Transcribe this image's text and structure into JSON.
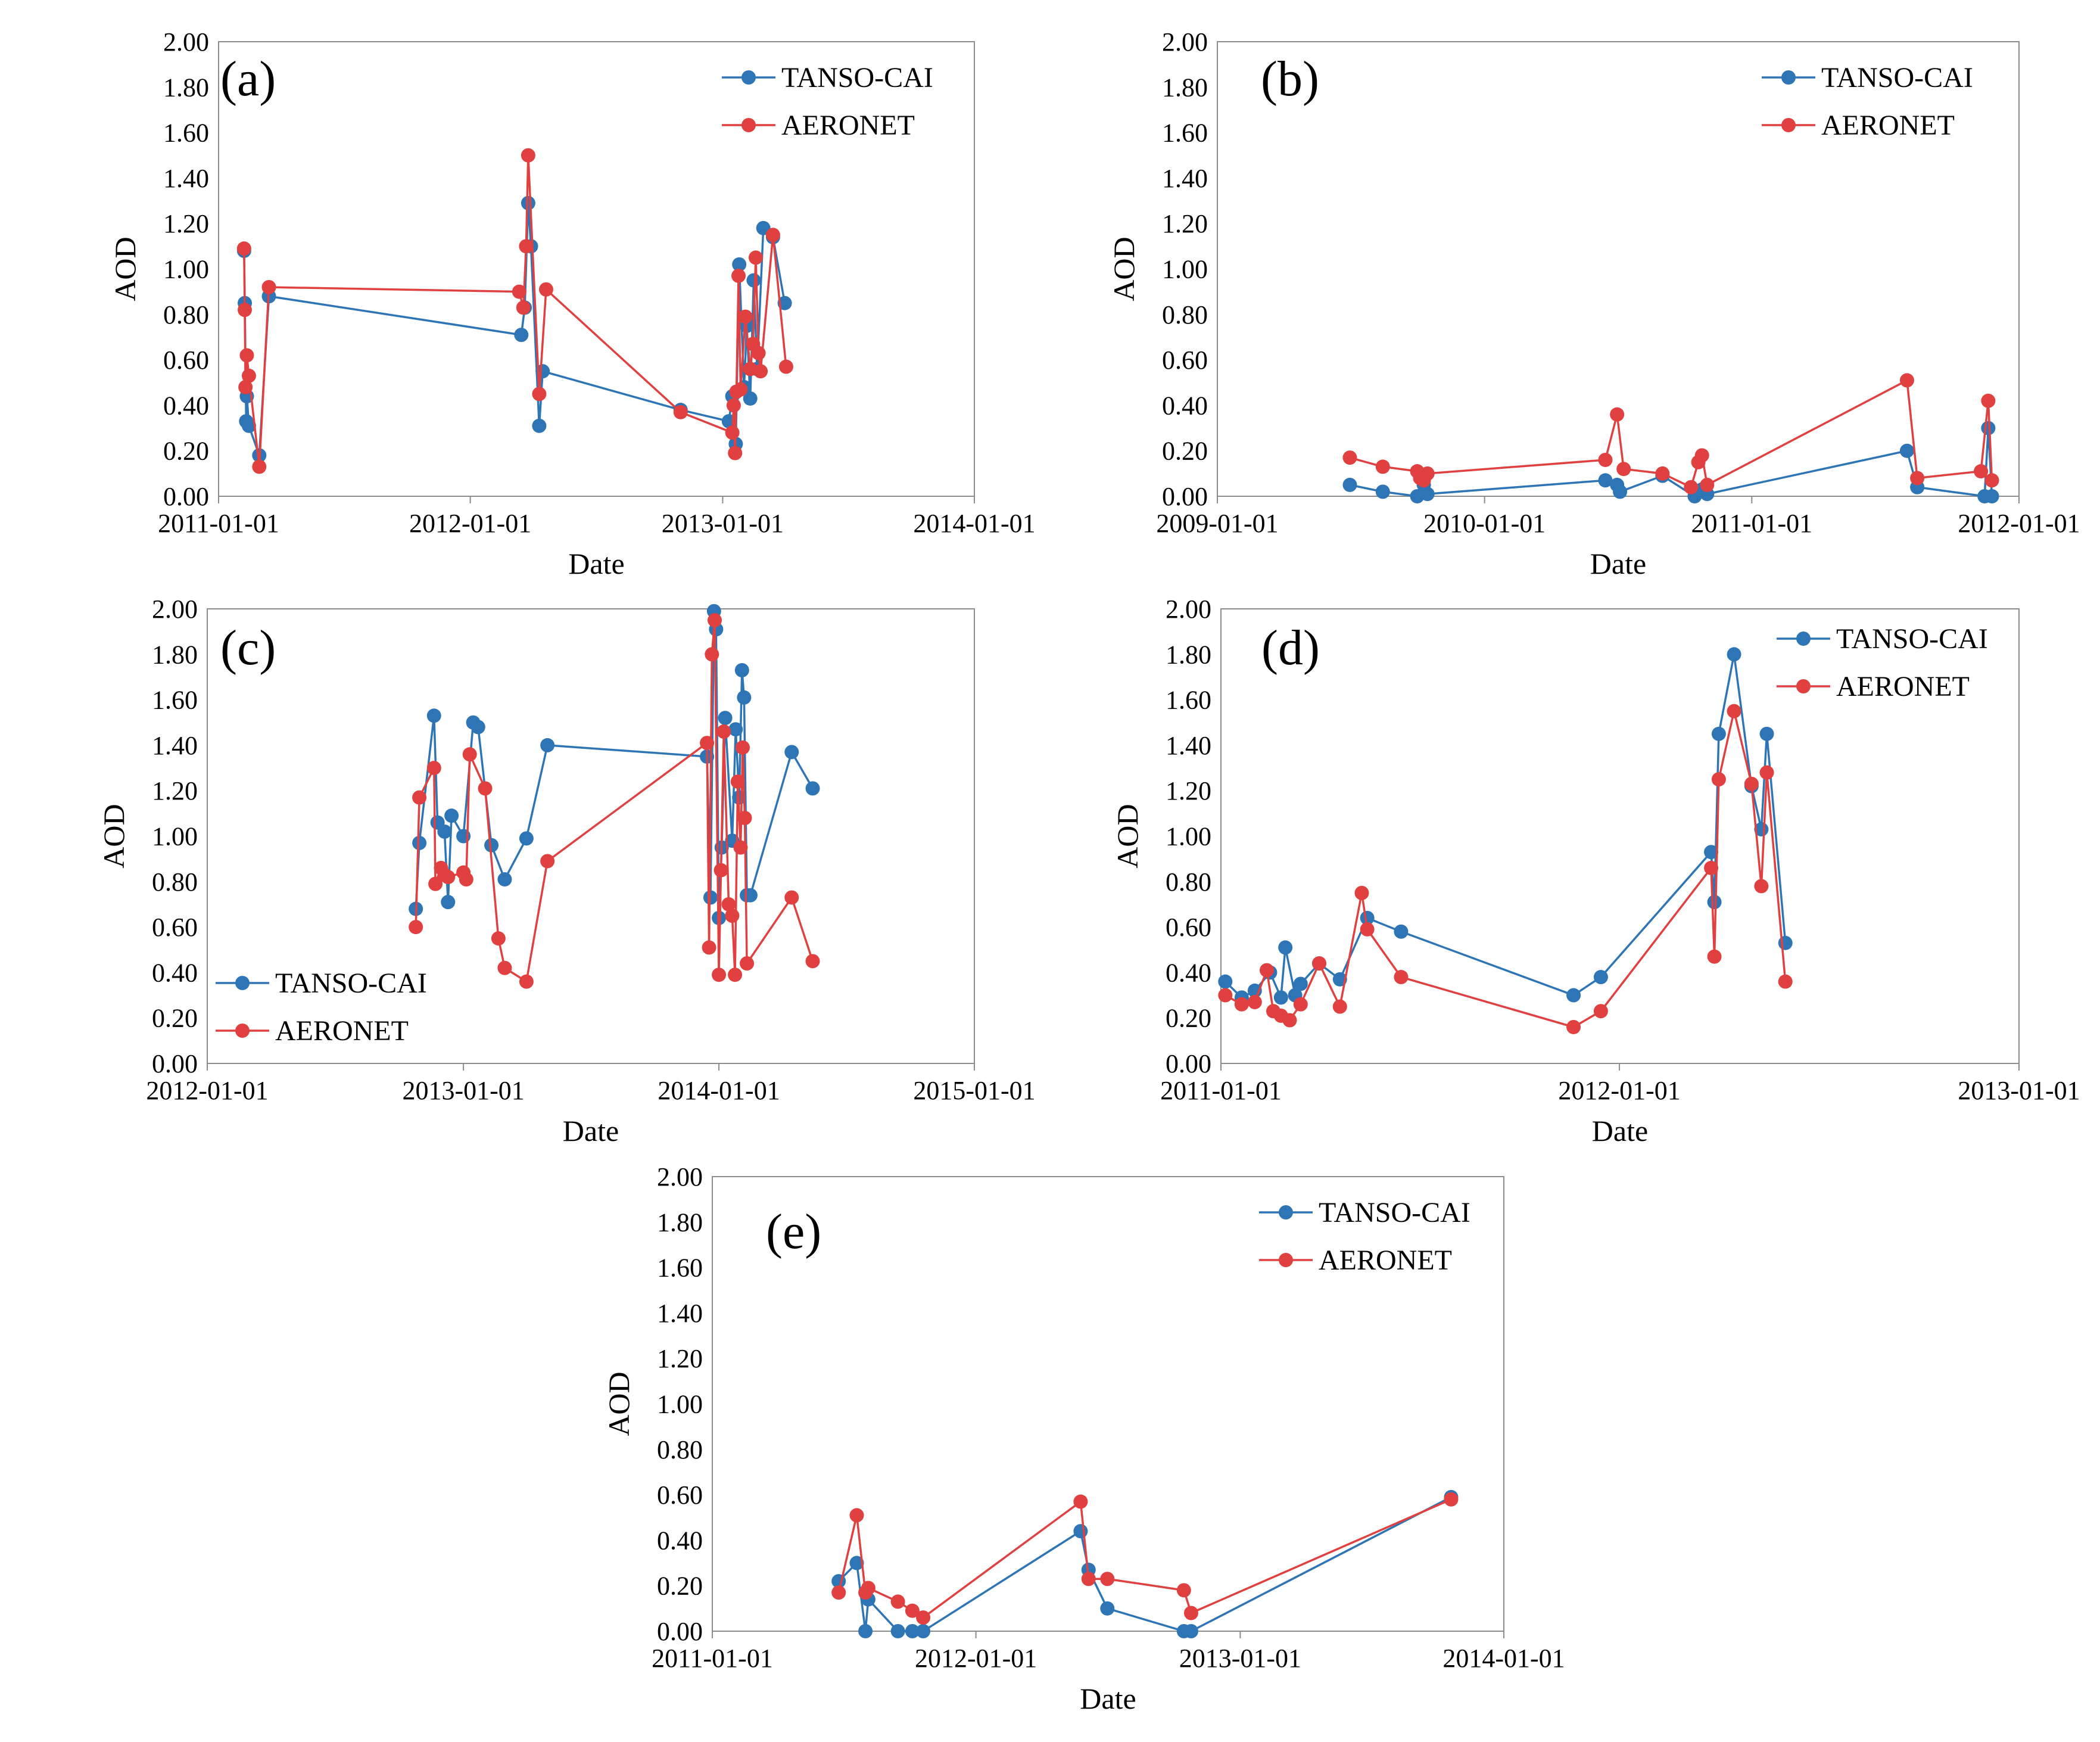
{
  "series_colors": {
    "TANSO-CAI": "#2E75B6",
    "AERONET": "#E04040"
  },
  "chart_data": [
    {
      "type": "line",
      "panel_label": "(a)",
      "xlabel": "Date",
      "ylabel": "AOD",
      "xlim": [
        "2011-01-01",
        "2014-01-01"
      ],
      "xticks": [
        "2011-01-01",
        "2012-01-01",
        "2013-01-01",
        "2014-01-01"
      ],
      "ylim": [
        0,
        2
      ],
      "yticks": [
        "0.00",
        "0.20",
        "0.40",
        "0.60",
        "0.80",
        "1.00",
        "1.20",
        "1.40",
        "1.60",
        "1.80",
        "2.00"
      ],
      "legend_position": "top-right",
      "series": [
        {
          "name": "TANSO-CAI",
          "x": [
            "2011-02-07",
            "2011-02-08",
            "2011-02-10",
            "2011-02-11",
            "2011-02-14",
            "2011-03-01",
            "2011-03-15",
            "2012-03-15",
            "2012-03-20",
            "2012-03-25",
            "2012-03-29",
            "2012-04-10",
            "2012-04-15",
            "2012-11-01",
            "2013-01-10",
            "2013-01-15",
            "2013-01-20",
            "2013-01-25",
            "2013-02-01",
            "2013-02-05",
            "2013-02-10",
            "2013-02-15",
            "2013-02-20",
            "2013-03-01",
            "2013-03-15",
            "2013-04-01"
          ],
          "y": [
            1.08,
            0.85,
            0.33,
            0.44,
            0.31,
            0.18,
            0.88,
            0.71,
            0.83,
            1.29,
            1.1,
            0.31,
            0.55,
            0.38,
            0.33,
            0.44,
            0.23,
            1.02,
            0.48,
            0.75,
            0.43,
            0.95,
            0.56,
            1.18,
            1.14,
            0.85
          ]
        },
        {
          "name": "AERONET",
          "x": [
            "2011-02-07",
            "2011-02-08",
            "2011-02-09",
            "2011-02-11",
            "2011-02-14",
            "2011-03-01",
            "2011-03-15",
            "2012-03-12",
            "2012-03-18",
            "2012-03-22",
            "2012-03-25",
            "2012-04-10",
            "2012-04-20",
            "2012-11-01",
            "2013-01-15",
            "2013-01-17",
            "2013-01-19",
            "2013-01-21",
            "2013-01-24",
            "2013-01-27",
            "2013-02-03",
            "2013-02-10",
            "2013-02-14",
            "2013-02-18",
            "2013-02-22",
            "2013-02-25",
            "2013-03-15",
            "2013-04-03"
          ],
          "y": [
            1.09,
            0.82,
            0.48,
            0.62,
            0.53,
            0.13,
            0.92,
            0.9,
            0.83,
            1.1,
            1.5,
            0.45,
            0.91,
            0.37,
            0.28,
            0.4,
            0.19,
            0.46,
            0.97,
            0.47,
            0.79,
            0.56,
            0.67,
            1.05,
            0.63,
            0.55,
            1.15,
            0.57
          ]
        }
      ]
    },
    {
      "type": "line",
      "panel_label": "(b)",
      "xlabel": "Date",
      "ylabel": "AOD",
      "xlim": [
        "2009-01-01",
        "2012-01-01"
      ],
      "xticks": [
        "2009-01-01",
        "2010-01-01",
        "2011-01-01",
        "2012-01-01"
      ],
      "ylim": [
        0,
        2
      ],
      "yticks": [
        "0.00",
        "0.20",
        "0.40",
        "0.60",
        "0.80",
        "1.00",
        "1.20",
        "1.40",
        "1.60",
        "1.80",
        "2.00"
      ],
      "legend_position": "top-right",
      "series": [
        {
          "name": "TANSO-CAI",
          "x": [
            "2009-07-01",
            "2009-08-15",
            "2009-10-01",
            "2009-10-10",
            "2009-10-15",
            "2010-06-15",
            "2010-07-01",
            "2010-07-05",
            "2010-09-01",
            "2010-10-15",
            "2010-10-25",
            "2010-11-01",
            "2011-08-01",
            "2011-08-15",
            "2011-11-15",
            "2011-11-20",
            "2011-11-25"
          ],
          "y": [
            0.05,
            0.02,
            0.0,
            0.05,
            0.01,
            0.07,
            0.05,
            0.02,
            0.09,
            0.0,
            0.03,
            0.01,
            0.2,
            0.04,
            0.0,
            0.3,
            0.0
          ]
        },
        {
          "name": "AERONET",
          "x": [
            "2009-07-01",
            "2009-08-15",
            "2009-10-01",
            "2009-10-05",
            "2009-10-10",
            "2009-10-15",
            "2010-06-15",
            "2010-07-01",
            "2010-07-10",
            "2010-09-01",
            "2010-10-10",
            "2010-10-20",
            "2010-10-25",
            "2010-11-01",
            "2011-08-01",
            "2011-08-15",
            "2011-11-10",
            "2011-11-20",
            "2011-11-25"
          ],
          "y": [
            0.17,
            0.13,
            0.11,
            0.08,
            0.07,
            0.1,
            0.16,
            0.36,
            0.12,
            0.1,
            0.04,
            0.15,
            0.18,
            0.05,
            0.51,
            0.08,
            0.11,
            0.42,
            0.07
          ]
        }
      ]
    },
    {
      "type": "line",
      "panel_label": "(c)",
      "xlabel": "Date",
      "ylabel": "AOD",
      "xlim": [
        "2012-01-01",
        "2015-01-01"
      ],
      "xticks": [
        "2012-01-01",
        "2013-01-01",
        "2014-01-01",
        "2015-01-01"
      ],
      "ylim": [
        0,
        2
      ],
      "yticks": [
        "0.00",
        "0.20",
        "0.40",
        "0.60",
        "0.80",
        "1.00",
        "1.20",
        "1.40",
        "1.60",
        "1.80",
        "2.00"
      ],
      "legend_position": "bottom-left",
      "series": [
        {
          "name": "TANSO-CAI",
          "x": [
            "2012-10-25",
            "2012-10-30",
            "2012-11-20",
            "2012-11-25",
            "2012-12-05",
            "2012-12-10",
            "2012-12-15",
            "2013-01-01",
            "2013-01-15",
            "2013-01-22",
            "2013-02-10",
            "2013-03-01",
            "2013-04-01",
            "2013-05-01",
            "2013-12-15",
            "2013-12-20",
            "2013-12-25",
            "2013-12-28",
            "2014-01-01",
            "2014-01-05",
            "2014-01-10",
            "2014-01-20",
            "2014-01-25",
            "2014-01-30",
            "2014-02-03",
            "2014-02-06",
            "2014-02-10",
            "2014-02-15",
            "2014-04-15",
            "2014-05-15"
          ],
          "y": [
            0.68,
            0.97,
            1.53,
            1.06,
            1.02,
            0.71,
            1.09,
            1.0,
            1.5,
            1.48,
            0.96,
            0.81,
            0.99,
            1.4,
            1.35,
            0.73,
            1.99,
            1.91,
            0.64,
            0.95,
            1.52,
            0.98,
            1.47,
            1.17,
            1.73,
            1.61,
            0.74,
            0.74,
            1.37,
            1.21
          ]
        },
        {
          "name": "AERONET",
          "x": [
            "2012-10-25",
            "2012-10-30",
            "2012-11-20",
            "2012-11-22",
            "2012-11-30",
            "2012-12-05",
            "2012-12-10",
            "2013-01-01",
            "2013-01-05",
            "2013-01-10",
            "2013-02-01",
            "2013-02-20",
            "2013-03-01",
            "2013-04-01",
            "2013-05-01",
            "2013-12-15",
            "2013-12-18",
            "2013-12-22",
            "2013-12-26",
            "2014-01-01",
            "2014-01-04",
            "2014-01-08",
            "2014-01-15",
            "2014-01-20",
            "2014-01-24",
            "2014-01-28",
            "2014-02-01",
            "2014-02-04",
            "2014-02-07",
            "2014-02-10",
            "2014-04-15",
            "2014-05-15"
          ],
          "y": [
            0.6,
            1.17,
            1.3,
            0.79,
            0.86,
            0.83,
            0.82,
            0.84,
            0.81,
            1.36,
            1.21,
            0.55,
            0.42,
            0.36,
            0.89,
            1.41,
            0.51,
            1.8,
            1.95,
            0.39,
            0.85,
            1.46,
            0.7,
            0.65,
            0.39,
            1.24,
            0.95,
            1.39,
            1.08,
            0.44,
            0.73,
            0.45
          ]
        }
      ]
    },
    {
      "type": "line",
      "panel_label": "(d)",
      "xlabel": "Date",
      "ylabel": "AOD",
      "xlim": [
        "2011-01-01",
        "2013-01-01"
      ],
      "xticks": [
        "2011-01-01",
        "2012-01-01",
        "2013-01-01"
      ],
      "ylim": [
        0,
        2
      ],
      "yticks": [
        "0.00",
        "0.20",
        "0.40",
        "0.60",
        "0.80",
        "1.00",
        "1.20",
        "1.40",
        "1.60",
        "1.80",
        "2.00"
      ],
      "legend_position": "top-right",
      "series": [
        {
          "name": "TANSO-CAI",
          "x": [
            "2011-01-05",
            "2011-01-20",
            "2011-02-01",
            "2011-02-15",
            "2011-02-25",
            "2011-03-01",
            "2011-03-10",
            "2011-03-15",
            "2011-04-01",
            "2011-04-20",
            "2011-05-15",
            "2011-06-15",
            "2011-11-20",
            "2011-12-15",
            "2012-03-25",
            "2012-03-28",
            "2012-04-01",
            "2012-04-15",
            "2012-05-01",
            "2012-05-10",
            "2012-05-15",
            "2012-06-01"
          ],
          "y": [
            0.36,
            0.29,
            0.32,
            0.4,
            0.29,
            0.51,
            0.3,
            0.35,
            0.44,
            0.37,
            0.64,
            0.58,
            0.3,
            0.38,
            0.93,
            0.71,
            1.45,
            1.8,
            1.22,
            1.03,
            1.45,
            0.53
          ]
        },
        {
          "name": "AERONET",
          "x": [
            "2011-01-05",
            "2011-01-20",
            "2011-02-01",
            "2011-02-12",
            "2011-02-18",
            "2011-02-25",
            "2011-03-05",
            "2011-03-15",
            "2011-04-01",
            "2011-04-20",
            "2011-05-10",
            "2011-05-15",
            "2011-06-15",
            "2011-11-20",
            "2011-12-15",
            "2012-03-25",
            "2012-03-28",
            "2012-04-01",
            "2012-04-15",
            "2012-05-01",
            "2012-05-10",
            "2012-05-15",
            "2012-06-01"
          ],
          "y": [
            0.3,
            0.26,
            0.27,
            0.41,
            0.23,
            0.21,
            0.19,
            0.26,
            0.44,
            0.25,
            0.75,
            0.59,
            0.38,
            0.16,
            0.23,
            0.86,
            0.47,
            1.25,
            1.55,
            1.23,
            0.78,
            1.28,
            0.36
          ]
        }
      ]
    },
    {
      "type": "line",
      "panel_label": "(e)",
      "xlabel": "Date",
      "ylabel": "AOD",
      "xlim": [
        "2011-01-01",
        "2014-01-01"
      ],
      "xticks": [
        "2011-01-01",
        "2012-01-01",
        "2013-01-01",
        "2014-01-01"
      ],
      "ylim": [
        0,
        2
      ],
      "yticks": [
        "0.00",
        "0.20",
        "0.40",
        "0.60",
        "0.80",
        "1.00",
        "1.20",
        "1.40",
        "1.60",
        "1.80",
        "2.00"
      ],
      "legend_position": "top-right",
      "series": [
        {
          "name": "TANSO-CAI",
          "x": [
            "2011-06-25",
            "2011-07-20",
            "2011-08-01",
            "2011-08-05",
            "2011-09-15",
            "2011-10-05",
            "2011-10-20",
            "2012-05-25",
            "2012-06-05",
            "2012-07-01",
            "2012-10-15",
            "2012-10-25",
            "2013-10-20"
          ],
          "y": [
            0.22,
            0.3,
            0.0,
            0.14,
            0.0,
            0.0,
            0.0,
            0.44,
            0.27,
            0.1,
            0.0,
            0.0,
            0.59
          ]
        },
        {
          "name": "AERONET",
          "x": [
            "2011-06-25",
            "2011-07-20",
            "2011-08-01",
            "2011-08-05",
            "2011-09-15",
            "2011-10-05",
            "2011-10-20",
            "2012-05-25",
            "2012-06-05",
            "2012-07-01",
            "2012-10-15",
            "2012-10-25",
            "2013-10-20"
          ],
          "y": [
            0.17,
            0.51,
            0.17,
            0.19,
            0.13,
            0.09,
            0.06,
            0.57,
            0.23,
            0.23,
            0.18,
            0.08,
            0.58
          ]
        }
      ]
    }
  ]
}
